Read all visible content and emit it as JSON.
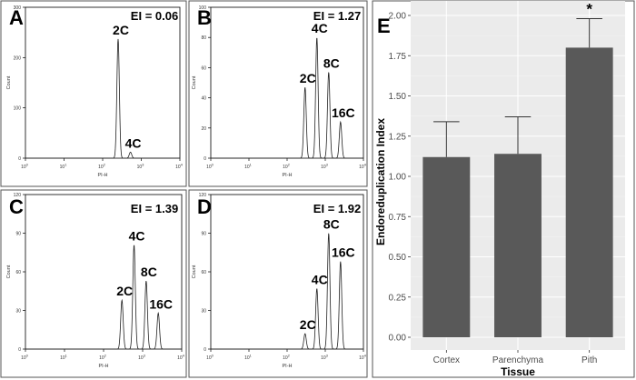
{
  "chart_data": [
    {
      "type": "line",
      "panel_label": "A",
      "ei_label": "EI = 0.06",
      "xlabel": "PI-H",
      "ylabel": "Count",
      "xlim_log10": [
        0,
        4
      ],
      "ylim": [
        0,
        300
      ],
      "y_ticks": [
        0,
        100,
        200,
        300
      ],
      "peaks": [
        {
          "label": "2C",
          "log10x": 2.4,
          "height": 237
        },
        {
          "label": "4C",
          "log10x": 2.72,
          "height": 12
        }
      ]
    },
    {
      "type": "line",
      "panel_label": "B",
      "ei_label": "EI = 1.27",
      "xlabel": "PI-H",
      "ylabel": "Count",
      "xlim_log10": [
        0,
        4
      ],
      "ylim": [
        0,
        100
      ],
      "y_ticks": [
        0,
        20,
        40,
        60,
        80,
        100
      ],
      "peaks": [
        {
          "label": "2C",
          "log10x": 2.47,
          "height": 47
        },
        {
          "label": "4C",
          "log10x": 2.78,
          "height": 80
        },
        {
          "label": "8C",
          "log10x": 3.09,
          "height": 57
        },
        {
          "label": "16C",
          "log10x": 3.4,
          "height": 24
        }
      ]
    },
    {
      "type": "line",
      "panel_label": "C",
      "ei_label": "EI = 1.39",
      "xlabel": "PI-H",
      "ylabel": "Count",
      "xlim_log10": [
        0,
        4
      ],
      "ylim": [
        0,
        120
      ],
      "y_ticks": [
        0,
        30,
        60,
        90,
        120
      ],
      "peaks": [
        {
          "label": "2C",
          "log10x": 2.47,
          "height": 38
        },
        {
          "label": "4C",
          "log10x": 2.78,
          "height": 81
        },
        {
          "label": "8C",
          "log10x": 3.09,
          "height": 53
        },
        {
          "label": "16C",
          "log10x": 3.4,
          "height": 28
        }
      ]
    },
    {
      "type": "line",
      "panel_label": "D",
      "ei_label": "EI = 1.92",
      "xlabel": "PI-H",
      "ylabel": "Count",
      "xlim_log10": [
        0,
        4
      ],
      "ylim": [
        0,
        120
      ],
      "y_ticks": [
        0,
        30,
        60,
        90,
        120
      ],
      "peaks": [
        {
          "label": "2C",
          "log10x": 2.47,
          "height": 12
        },
        {
          "label": "4C",
          "log10x": 2.78,
          "height": 47
        },
        {
          "label": "8C",
          "log10x": 3.09,
          "height": 90
        },
        {
          "label": "16C",
          "log10x": 3.4,
          "height": 68
        }
      ]
    },
    {
      "type": "bar",
      "panel_label": "E",
      "title": "",
      "xlabel": "Tissue",
      "ylabel": "Endoreduplication Index",
      "categories": [
        "Cortex",
        "Parenchyma",
        "Pith"
      ],
      "values": [
        1.12,
        1.14,
        1.8
      ],
      "error_upper": [
        1.34,
        1.37,
        1.98
      ],
      "annotations": [
        "",
        "",
        "*"
      ],
      "ylim": [
        0,
        2.0
      ],
      "y_ticks": [
        "0.00",
        "0.25",
        "0.50",
        "0.75",
        "1.00",
        "1.25",
        "1.50",
        "1.75",
        "2.00"
      ],
      "grid": true
    }
  ]
}
